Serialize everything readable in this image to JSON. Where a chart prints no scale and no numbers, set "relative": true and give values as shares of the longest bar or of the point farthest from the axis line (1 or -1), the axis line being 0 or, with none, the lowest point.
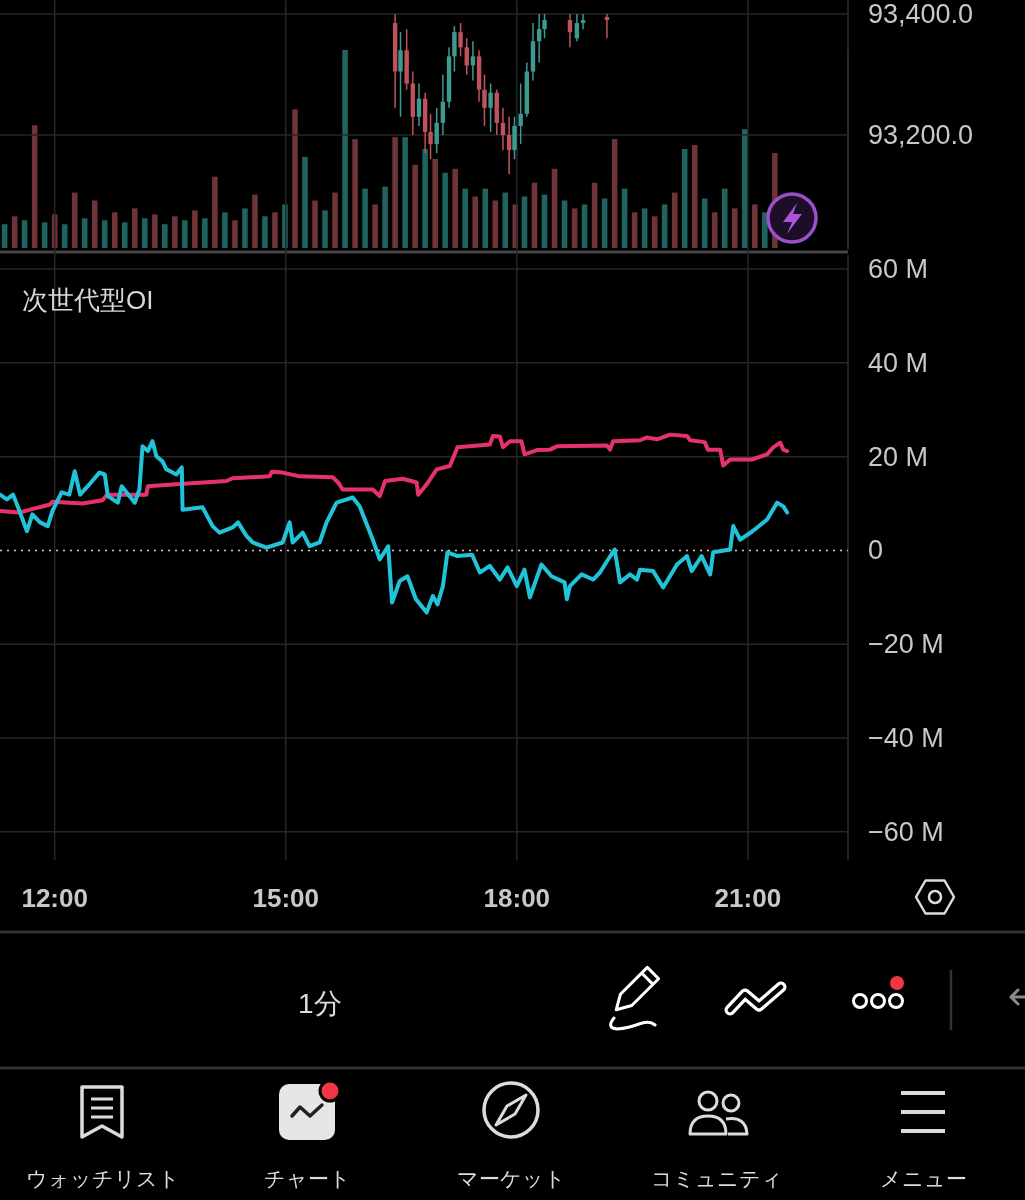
{
  "chart_data": [
    {
      "type": "candlestick",
      "x": [
        16.42,
        16.49,
        16.57,
        16.65,
        16.73,
        16.81,
        16.88,
        16.96,
        17.04,
        17.12,
        17.19,
        17.27,
        17.35,
        17.43,
        17.51,
        17.58,
        17.66,
        17.74,
        17.82,
        17.9,
        17.97,
        18.05,
        18.13,
        18.21,
        18.29,
        18.36,
        18.69,
        18.78,
        18.86,
        19.17
      ],
      "ohlc": [
        [
          93385,
          93400,
          93245,
          93305
        ],
        [
          93305,
          93370,
          93230,
          93340
        ],
        [
          93340,
          93375,
          93275,
          93285
        ],
        [
          93285,
          93305,
          93200,
          93230
        ],
        [
          93230,
          93285,
          93215,
          93260
        ],
        [
          93260,
          93270,
          93170,
          93205
        ],
        [
          93205,
          93235,
          93160,
          93185
        ],
        [
          93185,
          93245,
          93170,
          93220
        ],
        [
          93220,
          93300,
          93200,
          93255
        ],
        [
          93255,
          93345,
          93245,
          93330
        ],
        [
          93330,
          93380,
          93305,
          93370
        ],
        [
          93370,
          93385,
          93330,
          93345
        ],
        [
          93345,
          93360,
          93300,
          93315
        ],
        [
          93315,
          93355,
          93290,
          93330
        ],
        [
          93330,
          93340,
          93255,
          93275
        ],
        [
          93275,
          93300,
          93215,
          93245
        ],
        [
          93245,
          93285,
          93205,
          93270
        ],
        [
          93270,
          93275,
          93200,
          93220
        ],
        [
          93220,
          93245,
          93175,
          93200
        ],
        [
          93200,
          93230,
          93135,
          93175
        ],
        [
          93175,
          93230,
          93160,
          93215
        ],
        [
          93215,
          93285,
          93185,
          93235
        ],
        [
          93235,
          93320,
          93230,
          93305
        ],
        [
          93305,
          93385,
          93290,
          93355
        ],
        [
          93355,
          93400,
          93320,
          93375
        ],
        [
          93375,
          93400,
          93360,
          93390
        ],
        [
          93390,
          93400,
          93345,
          93370
        ],
        [
          93360,
          93400,
          93355,
          93385
        ],
        [
          93385,
          93400,
          93375,
          93390
        ],
        [
          93395,
          93400,
          93360,
          93390
        ]
      ],
      "colors": [
        "#c0525c",
        "#3d9a8f",
        "#c0525c",
        "#c0525c",
        "#3d9a8f",
        "#c0525c",
        "#c0525c",
        "#3d9a8f",
        "#3d9a8f",
        "#3d9a8f",
        "#3d9a8f",
        "#c0525c",
        "#c0525c",
        "#3d9a8f",
        "#c0525c",
        "#c0525c",
        "#3d9a8f",
        "#c0525c",
        "#c0525c",
        "#c0525c",
        "#3d9a8f",
        "#3d9a8f",
        "#3d9a8f",
        "#3d9a8f",
        "#3d9a8f",
        "#3d9a8f",
        "#c0525c",
        "#3d9a8f",
        "#3d9a8f",
        "#c0525c"
      ],
      "xlim": [
        11.29,
        22.3
      ],
      "tick_labels": "y",
      "ylim": [
        93010,
        93400
      ],
      "yticks": [
        {
          "value": 93200,
          "label": "93,200.0"
        },
        {
          "value": 93400,
          "label": "93,400.0"
        }
      ],
      "grid": true
    },
    {
      "type": "bar",
      "relative": true,
      "xlim": [
        11.29,
        22.3
      ],
      "x": [
        11.35,
        11.48,
        11.61,
        11.74,
        11.87,
        12.0,
        12.13,
        12.26,
        12.39,
        12.52,
        12.65,
        12.78,
        12.91,
        13.04,
        13.17,
        13.3,
        13.43,
        13.56,
        13.69,
        13.82,
        13.95,
        14.08,
        14.21,
        14.34,
        14.47,
        14.6,
        14.73,
        14.86,
        14.99,
        15.12,
        15.25,
        15.38,
        15.51,
        15.64,
        15.77,
        15.9,
        16.03,
        16.16,
        16.29,
        16.42,
        16.55,
        16.68,
        16.81,
        16.94,
        17.07,
        17.2,
        17.33,
        17.46,
        17.59,
        17.72,
        17.85,
        17.98,
        18.1,
        18.23,
        18.36,
        18.49,
        18.62,
        18.75,
        18.88,
        19.01,
        19.14,
        19.27,
        19.4,
        19.53,
        19.66,
        19.79,
        19.92,
        20.05,
        20.18,
        20.31,
        20.44,
        20.57,
        20.7,
        20.83,
        20.96,
        21.09,
        21.22,
        21.35
      ],
      "values": [
        0.12,
        0.16,
        0.14,
        0.62,
        0.13,
        0.17,
        0.12,
        0.28,
        0.15,
        0.24,
        0.14,
        0.18,
        0.13,
        0.2,
        0.15,
        0.17,
        0.12,
        0.16,
        0.14,
        0.19,
        0.15,
        0.36,
        0.18,
        0.14,
        0.2,
        0.27,
        0.16,
        0.18,
        0.22,
        0.7,
        0.46,
        0.24,
        0.19,
        0.28,
        1.0,
        0.55,
        0.3,
        0.22,
        0.31,
        0.56,
        0.56,
        0.42,
        0.5,
        0.45,
        0.38,
        0.4,
        0.3,
        0.26,
        0.3,
        0.24,
        0.28,
        0.22,
        0.26,
        0.33,
        0.27,
        0.4,
        0.24,
        0.2,
        0.22,
        0.33,
        0.25,
        0.55,
        0.3,
        0.18,
        0.2,
        0.16,
        0.22,
        0.28,
        0.5,
        0.52,
        0.25,
        0.18,
        0.3,
        0.2,
        0.6,
        0.22,
        0.18,
        0.48
      ],
      "colors": [
        "#1f6460",
        "#6e3438",
        "#1f6460",
        "#6e3438",
        "#1f6460",
        "#6e3438",
        "#1f6460",
        "#6e3438",
        "#1f6460",
        "#6e3438",
        "#1f6460",
        "#6e3438",
        "#1f6460",
        "#6e3438",
        "#1f6460",
        "#6e3438",
        "#1f6460",
        "#6e3438",
        "#1f6460",
        "#6e3438",
        "#1f6460",
        "#6e3438",
        "#1f6460",
        "#6e3438",
        "#1f6460",
        "#6e3438",
        "#1f6460",
        "#6e3438",
        "#1f6460",
        "#6e3438",
        "#1f6460",
        "#6e3438",
        "#1f6460",
        "#6e3438",
        "#1f6460",
        "#6e3438",
        "#1f6460",
        "#6e3438",
        "#1f6460",
        "#6e3438",
        "#1f6460",
        "#6e3438",
        "#1f6460",
        "#6e3438",
        "#1f6460",
        "#6e3438",
        "#1f6460",
        "#6e3438",
        "#1f6460",
        "#6e3438",
        "#1f6460",
        "#6e3438",
        "#1f6460",
        "#6e3438",
        "#1f6460",
        "#6e3438",
        "#1f6460",
        "#6e3438",
        "#1f6460",
        "#6e3438",
        "#1f6460",
        "#6e3438",
        "#1f6460",
        "#6e3438",
        "#1f6460",
        "#6e3438",
        "#1f6460",
        "#6e3438",
        "#1f6460",
        "#6e3438",
        "#1f6460",
        "#6e3438",
        "#1f6460",
        "#6e3438",
        "#1f6460",
        "#6e3438",
        "#1f6460",
        "#6e3438"
      ]
    },
    {
      "type": "line",
      "title": "次世代型OI",
      "xlim": [
        11.29,
        22.3
      ],
      "xticks": [
        {
          "value": 12,
          "label": "12:00"
        },
        {
          "value": 15,
          "label": "15:00"
        },
        {
          "value": 18,
          "label": "18:00"
        },
        {
          "value": 21,
          "label": "21:00"
        }
      ],
      "ylim": [
        -66,
        63
      ],
      "yticks": [
        {
          "value": 60,
          "label": "60 M"
        },
        {
          "value": 40,
          "label": "40 M"
        },
        {
          "value": 20,
          "label": "20 M"
        },
        0,
        {
          "value": -20,
          "label": "−20 M"
        },
        {
          "value": -40,
          "label": "−40 M"
        },
        {
          "value": -60,
          "label": "−60 M"
        }
      ],
      "grid": true,
      "line_style": "solid",
      "ref_lines": [
        {
          "axis": "y",
          "value": 0,
          "color": "#cfcfcf",
          "line_style": "dotted"
        }
      ],
      "series": [
        {
          "color": "#e5336a",
          "x": [
            11.29,
            11.55,
            11.68,
            11.94,
            11.97,
            12.36,
            12.62,
            12.68,
            13.19,
            13.21,
            13.58,
            14.23,
            14.31,
            14.79,
            14.82,
            14.96,
            15.18,
            15.61,
            15.68,
            15.74,
            16.13,
            16.22,
            16.29,
            16.52,
            16.7,
            16.72,
            16.83,
            16.96,
            17.13,
            17.23,
            17.65,
            17.69,
            17.78,
            17.82,
            17.91,
            18.06,
            18.1,
            18.26,
            18.43,
            18.52,
            19.17,
            19.21,
            19.25,
            19.6,
            19.69,
            19.82,
            19.99,
            20.21,
            20.25,
            20.44,
            20.48,
            20.64,
            20.68,
            20.77,
            21.06,
            21.25,
            21.33,
            21.42,
            21.46,
            21.51
          ],
          "values": [
            8.4,
            8.1,
            8.7,
            9.8,
            10.4,
            10.0,
            10.7,
            11.9,
            11.9,
            13.7,
            14.1,
            14.8,
            15.4,
            15.8,
            16.8,
            16.6,
            15.8,
            15.6,
            14.5,
            13.0,
            13.0,
            11.6,
            14.8,
            15.3,
            14.5,
            11.9,
            14.1,
            17.3,
            18.0,
            22.0,
            22.6,
            24.4,
            24.3,
            22.0,
            23.3,
            23.3,
            20.5,
            21.4,
            21.5,
            22.2,
            22.4,
            21.5,
            23.3,
            23.5,
            24.1,
            23.7,
            24.7,
            24.4,
            23.5,
            23.1,
            21.5,
            21.5,
            18.1,
            19.4,
            19.4,
            20.5,
            22.0,
            23.0,
            21.5,
            21.2
          ]
        },
        {
          "color": "#22c2d8",
          "x": [
            11.29,
            11.38,
            11.46,
            11.52,
            11.64,
            11.71,
            11.81,
            11.91,
            11.97,
            12.09,
            12.19,
            12.26,
            12.33,
            12.43,
            12.58,
            12.65,
            12.69,
            12.82,
            12.87,
            13.04,
            13.1,
            13.14,
            13.21,
            13.27,
            13.32,
            13.4,
            13.45,
            13.58,
            13.65,
            13.66,
            13.92,
            14.05,
            14.14,
            14.31,
            14.38,
            14.49,
            14.57,
            14.75,
            14.96,
            15.05,
            15.09,
            15.22,
            15.31,
            15.44,
            15.53,
            15.66,
            15.87,
            15.96,
            16.13,
            16.22,
            16.33,
            16.38,
            16.48,
            16.58,
            16.69,
            16.83,
            16.91,
            16.97,
            17.04,
            17.1,
            17.23,
            17.42,
            17.52,
            17.65,
            17.78,
            17.88,
            18.0,
            18.1,
            18.17,
            18.32,
            18.45,
            18.62,
            18.65,
            18.69,
            18.84,
            18.99,
            19.08,
            19.17,
            19.27,
            19.34,
            19.47,
            19.56,
            19.6,
            19.77,
            19.9,
            20.08,
            20.21,
            20.27,
            20.4,
            20.51,
            20.55,
            20.77,
            20.81,
            20.9,
            21.06,
            21.25,
            21.38,
            21.46,
            21.51
          ],
          "values": [
            11.9,
            10.9,
            11.9,
            9.4,
            4.1,
            7.7,
            6.0,
            5.2,
            8.4,
            12.4,
            11.9,
            16.9,
            11.9,
            13.7,
            16.6,
            16.2,
            11.6,
            10.2,
            13.7,
            10.2,
            13.0,
            22.2,
            21.2,
            23.3,
            20.1,
            19.0,
            17.3,
            16.2,
            17.7,
            8.7,
            9.2,
            5.2,
            3.8,
            4.9,
            6.0,
            3.1,
            1.7,
            0.6,
            1.7,
            6.0,
            1.7,
            3.8,
            0.9,
            1.7,
            6.0,
            10.2,
            11.3,
            9.4,
            2.3,
            -1.9,
            0.9,
            -11.1,
            -6.5,
            -5.5,
            -10.4,
            -13.2,
            -9.7,
            -11.5,
            -7.6,
            -0.4,
            -1.2,
            -0.9,
            -4.7,
            -3.3,
            -6.2,
            -3.6,
            -7.6,
            -4.1,
            -10.0,
            -3.0,
            -5.5,
            -6.8,
            -10.4,
            -7.6,
            -5.1,
            -6.2,
            -4.7,
            -2.3,
            0.2,
            -6.8,
            -5.1,
            -6.2,
            -4.1,
            -4.4,
            -7.9,
            -3.0,
            -1.2,
            -4.4,
            -1.2,
            -5.1,
            -0.4,
            0.2,
            5.2,
            2.3,
            4.1,
            6.6,
            10.2,
            9.4,
            8.1
          ]
        }
      ]
    },
    {
      "type": "other",
      "annotations": [
        "1分",
        "ウォッチリスト",
        "チャート",
        "マーケット",
        "コミュニティ",
        "メニュー"
      ]
    }
  ]
}
